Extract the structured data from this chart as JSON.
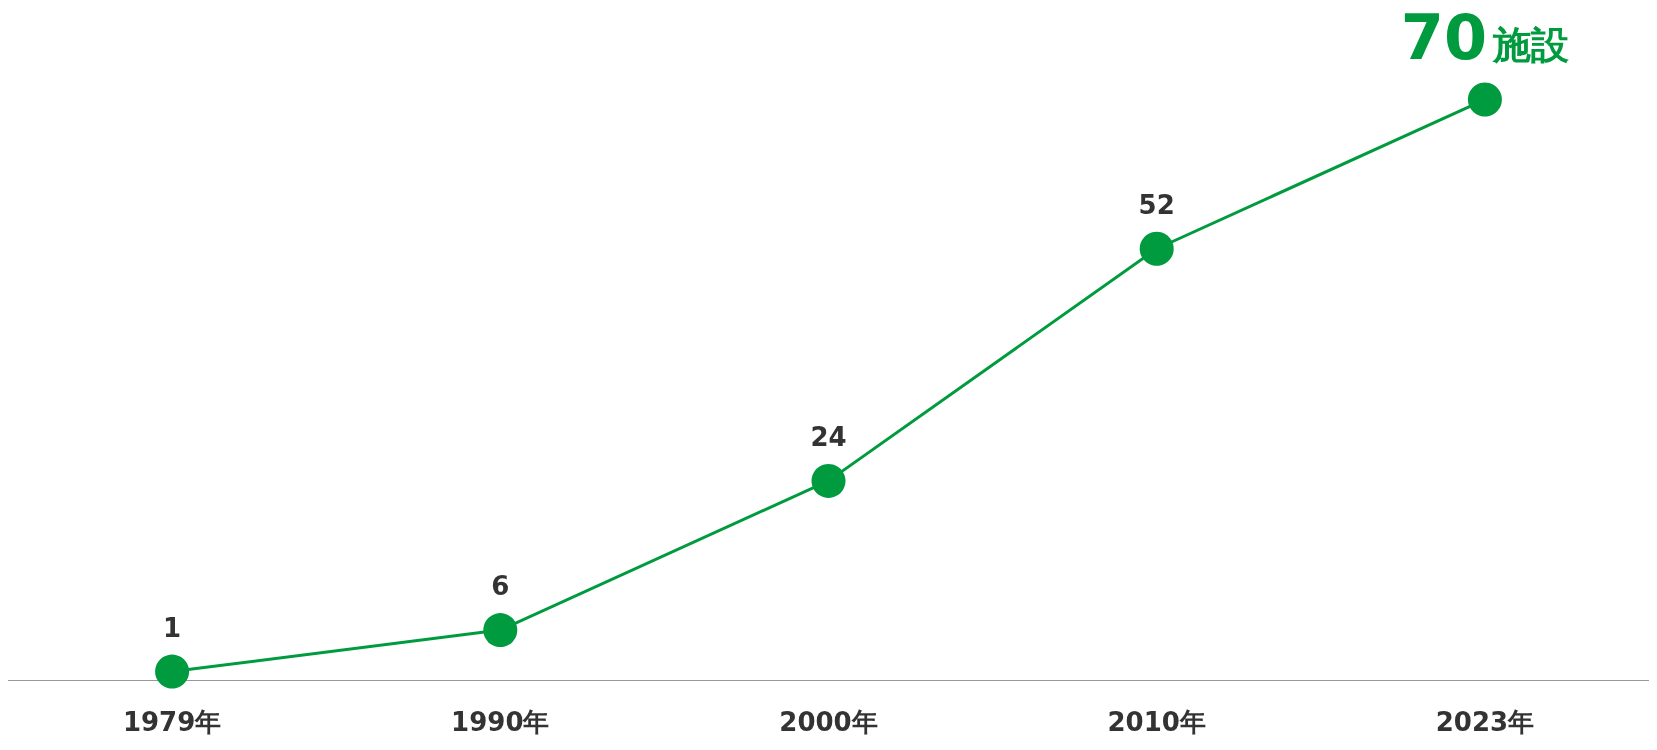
{
  "chart_data": {
    "type": "line",
    "categories": [
      "1979年",
      "1990年",
      "2000年",
      "2010年",
      "2023年"
    ],
    "series": [
      {
        "color": "#009b3e",
        "values": [
          1,
          6,
          24,
          52,
          70
        ],
        "value_labels": [
          "1",
          "6",
          "24",
          "52",
          "70施設"
        ]
      }
    ],
    "marker": "circle",
    "line_style": "solid",
    "grid": false,
    "tick_labels": "x"
  }
}
